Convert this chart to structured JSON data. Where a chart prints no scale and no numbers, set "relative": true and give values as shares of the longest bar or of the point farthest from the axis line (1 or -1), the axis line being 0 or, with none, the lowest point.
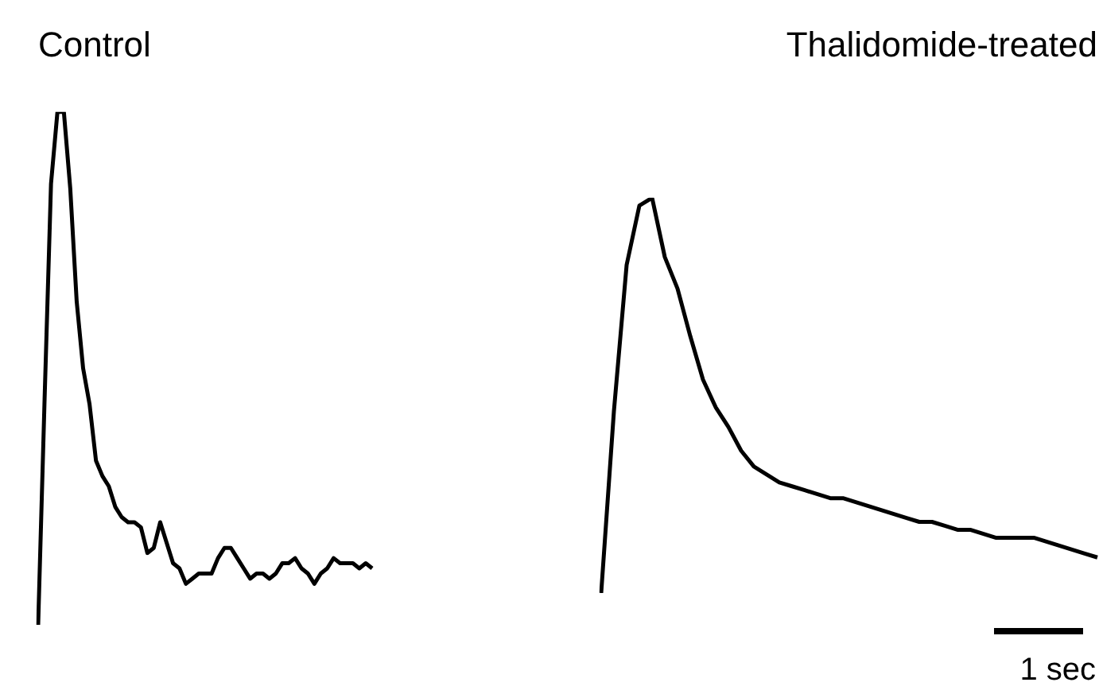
{
  "chart_data": [
    {
      "type": "line",
      "title": "Control",
      "relative": true,
      "marker": "none",
      "color": "#000000",
      "categories": [
        null,
        null,
        null,
        null,
        null,
        null,
        null,
        null,
        null,
        null,
        null,
        null,
        null,
        null,
        null,
        null,
        null,
        null,
        null,
        null,
        null,
        null,
        null,
        null,
        null,
        null,
        null,
        null,
        null,
        null,
        null,
        null,
        null,
        null,
        null,
        null,
        null,
        null,
        null,
        null,
        null,
        null,
        null,
        null,
        null,
        null,
        null,
        null,
        null,
        null,
        null,
        null,
        null
      ],
      "values": [
        0,
        0.44,
        0.86,
        1,
        1,
        0.85,
        0.63,
        0.5,
        0.43,
        0.32,
        0.29,
        0.27,
        0.23,
        0.21,
        0.2,
        0.2,
        0.19,
        0.14,
        0.15,
        0.2,
        0.16,
        0.12,
        0.11,
        0.08,
        0.09,
        0.1,
        0.1,
        0.1,
        0.13,
        0.15,
        0.15,
        0.13,
        0.11,
        0.09,
        0.1,
        0.1,
        0.09,
        0.1,
        0.12,
        0.12,
        0.13,
        0.11,
        0.1,
        0.08,
        0.1,
        0.11,
        0.13,
        0.12,
        0.12,
        0.12,
        0.11,
        0.12,
        0.11
      ]
    },
    {
      "type": "line",
      "title": "Thalidomide-treated",
      "relative": true,
      "marker": "none",
      "color": "#000000",
      "annotations": [
        "1 sec"
      ],
      "categories": [
        null,
        null,
        null,
        null,
        null,
        null,
        null,
        null,
        null,
        null,
        null,
        null,
        null,
        null,
        null,
        null,
        null,
        null,
        null,
        null,
        null,
        null,
        null,
        null,
        null,
        null,
        null,
        null,
        null,
        null,
        null,
        null,
        null,
        null,
        null,
        null,
        null,
        null,
        null,
        null
      ],
      "values": [
        0,
        0.46,
        0.83,
        0.98,
        1,
        0.85,
        0.77,
        0.65,
        0.54,
        0.47,
        0.42,
        0.36,
        0.32,
        0.3,
        0.28,
        0.27,
        0.26,
        0.25,
        0.24,
        0.24,
        0.23,
        0.22,
        0.21,
        0.2,
        0.19,
        0.18,
        0.18,
        0.17,
        0.16,
        0.16,
        0.15,
        0.14,
        0.14,
        0.14,
        0.14,
        0.13,
        0.12,
        0.11,
        0.1,
        0.09
      ]
    }
  ]
}
